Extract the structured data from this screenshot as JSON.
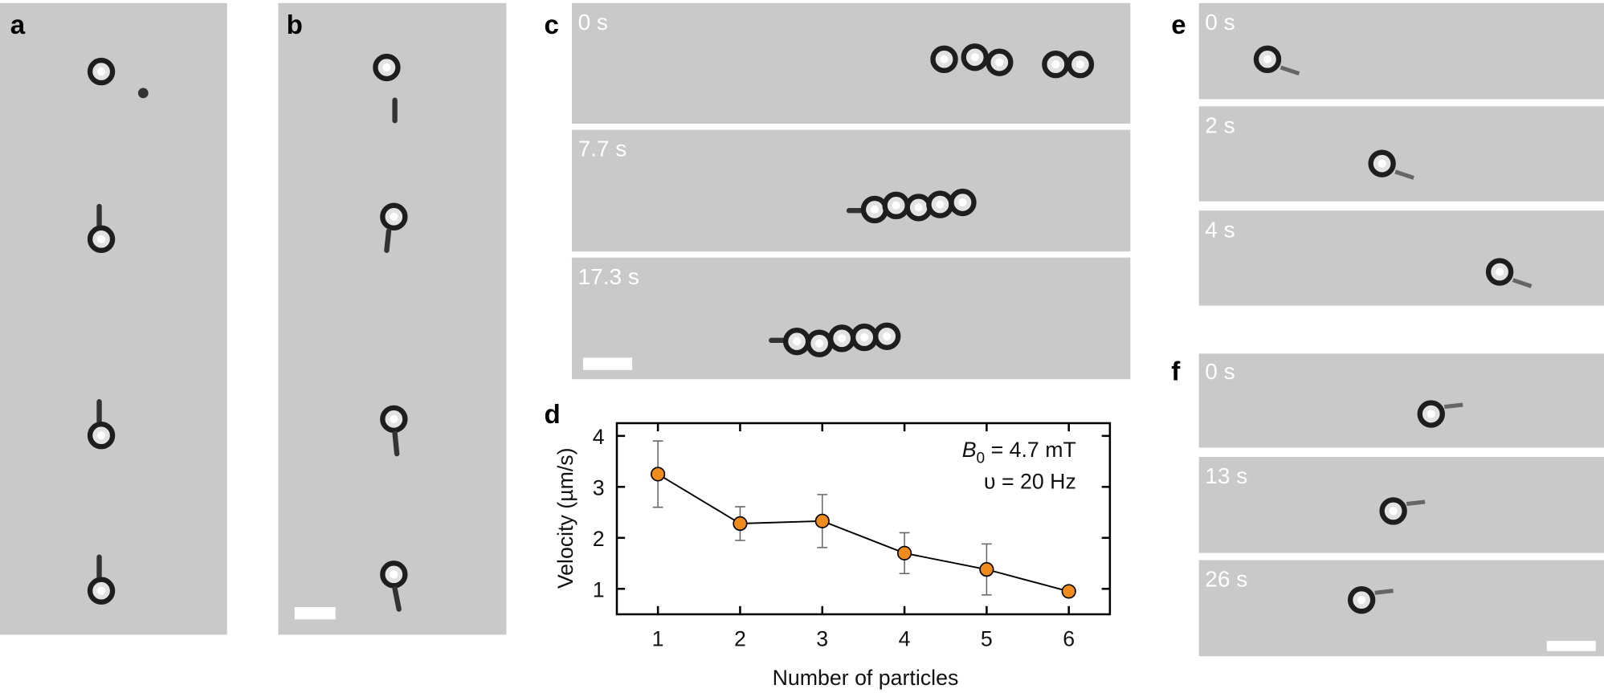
{
  "panels": {
    "a": {
      "label": "a"
    },
    "b": {
      "label": "b"
    },
    "c": {
      "label": "c",
      "times": [
        "0 s",
        "7.7 s",
        "17.3 s"
      ]
    },
    "d": {
      "label": "d"
    },
    "e": {
      "label": "e",
      "times": [
        "0 s",
        "2 s",
        "4 s"
      ]
    },
    "f": {
      "label": "f",
      "times": [
        "0 s",
        "13 s",
        "26 s"
      ]
    }
  },
  "chart_data": {
    "type": "line",
    "x_label": "Number of particles",
    "y_label": "Velocity (µm/s)",
    "annotation_field": {
      "symbol": "B",
      "subscript": "0",
      "text": " = 4.7 mT"
    },
    "annotation_freq": "υ = 20 Hz",
    "x": [
      1,
      2,
      3,
      4,
      5,
      6
    ],
    "series": [
      {
        "color": "#f08c1e",
        "values": [
          3.25,
          2.28,
          2.33,
          1.7,
          1.38,
          0.95
        ],
        "errors": [
          0.65,
          0.33,
          0.52,
          0.4,
          0.5,
          0.05
        ]
      }
    ],
    "xlim": [
      0.5,
      6.5
    ],
    "ylim": [
      0.5,
      4.25
    ],
    "xticks": [
      1,
      2,
      3,
      4,
      5,
      6
    ],
    "yticks": [
      1,
      2,
      3,
      4
    ]
  }
}
